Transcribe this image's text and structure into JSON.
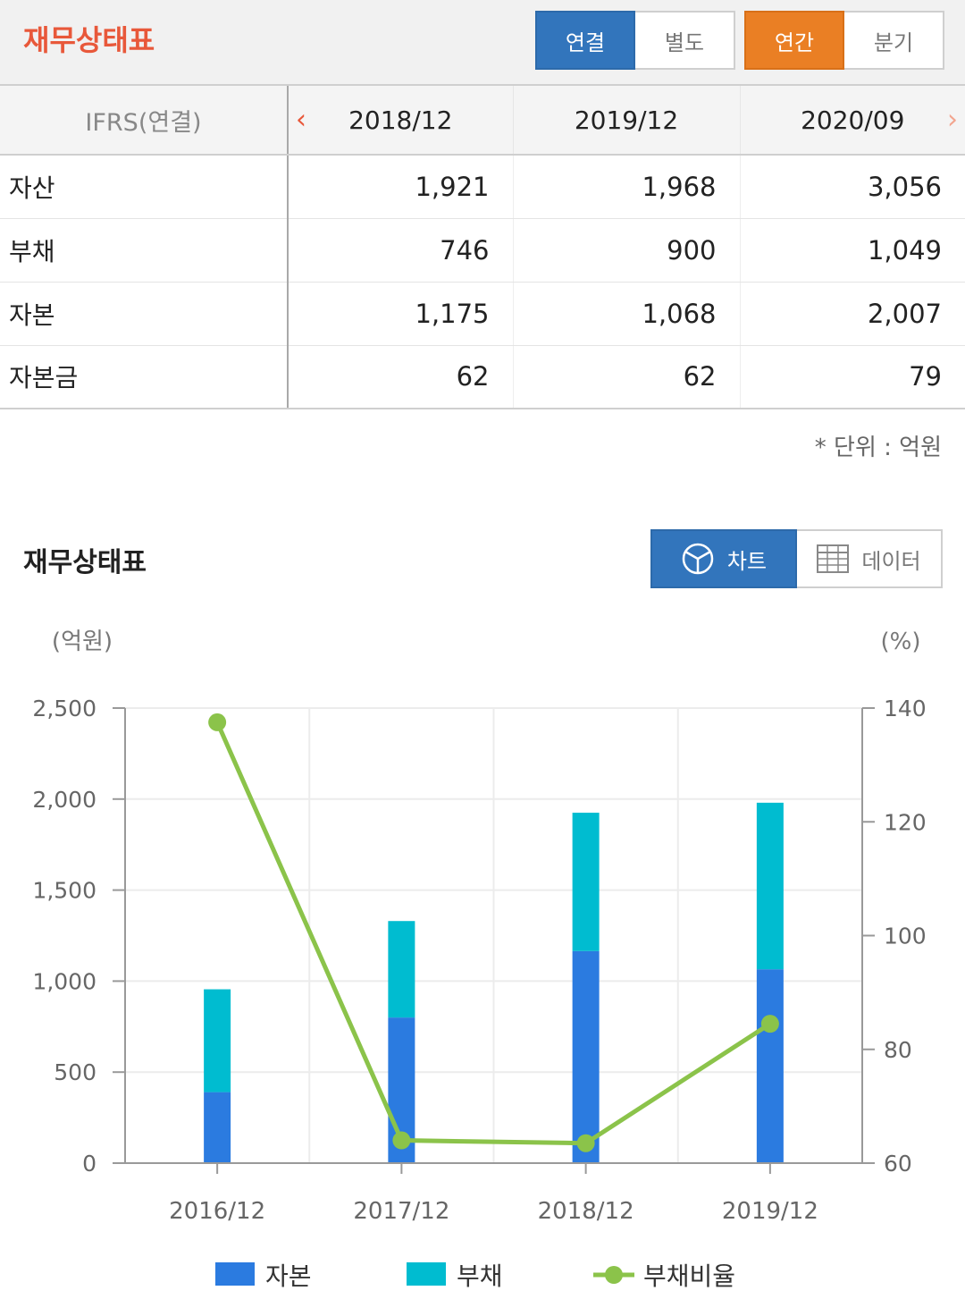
{
  "header": {
    "title": "재무상태표",
    "scope_buttons": [
      "연결",
      "별도"
    ],
    "period_buttons": [
      "연간",
      "분기"
    ]
  },
  "table": {
    "header_label": "IFRS(연결)",
    "columns": [
      "2018/12",
      "2019/12",
      "2020/09"
    ],
    "rows": [
      {
        "label": "자산",
        "values": [
          "1,921",
          "1,968",
          "3,056"
        ]
      },
      {
        "label": "부채",
        "values": [
          "746",
          "900",
          "1,049"
        ]
      },
      {
        "label": "자본",
        "values": [
          "1,175",
          "1,068",
          "2,007"
        ]
      },
      {
        "label": "자본금",
        "values": [
          "62",
          "62",
          "79"
        ]
      }
    ],
    "unit_note": "* 단위 : 억원"
  },
  "chart_section": {
    "title": "재무상태표",
    "chart_button": "차트",
    "data_button": "데이터"
  },
  "colors": {
    "capital": "#2b7be0",
    "debt": "#00bcd0",
    "ratio": "#8bc34a"
  },
  "chart_data": {
    "type": "bar",
    "stacked": true,
    "categories": [
      "2016/12",
      "2017/12",
      "2018/12",
      "2019/12"
    ],
    "series": [
      {
        "name": "자본",
        "kind": "bar",
        "axis": "left",
        "values": [
          390,
          800,
          1165,
          1065
        ]
      },
      {
        "name": "부채",
        "kind": "bar",
        "axis": "left",
        "values": [
          565,
          530,
          760,
          915
        ]
      },
      {
        "name": "부채비율",
        "kind": "line",
        "axis": "right",
        "values": [
          137.5,
          64,
          63.5,
          84.5
        ]
      }
    ],
    "ylabel": "(억원)",
    "y2label": "(%)",
    "ylim": [
      0,
      2500
    ],
    "y2lim": [
      60,
      140
    ],
    "yticks": [
      "0",
      "500",
      "1,000",
      "1,500",
      "2,000",
      "2,500"
    ],
    "y2ticks": [
      "60",
      "80",
      "100",
      "120",
      "140"
    ],
    "grid": true,
    "legend_position": "bottom"
  }
}
